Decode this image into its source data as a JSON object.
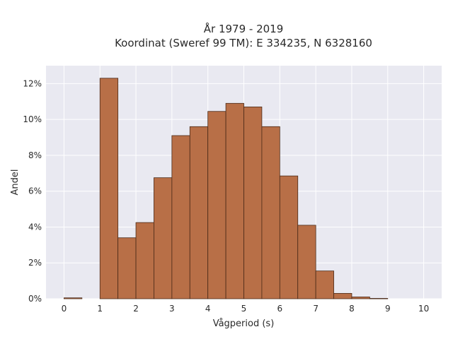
{
  "chart_data": {
    "type": "bar",
    "title_lines": [
      "År 1979 - 2019",
      "Koordinat (Sweref 99 TM): E 334235, N 6328160"
    ],
    "xlabel": "Vågperiod (s)",
    "ylabel": "Andel",
    "xlim": [
      -0.5,
      10.5
    ],
    "ylim": [
      0,
      13
    ],
    "x_ticks": [
      0,
      1,
      2,
      3,
      4,
      5,
      6,
      7,
      8,
      9,
      10
    ],
    "y_ticks": [
      0,
      2,
      4,
      6,
      8,
      10,
      12
    ],
    "y_tick_suffix": "%",
    "bin_width": 0.5,
    "bins": [
      {
        "start": 0.0,
        "value": 0.05
      },
      {
        "start": 0.5,
        "value": 0.0
      },
      {
        "start": 1.0,
        "value": 12.3
      },
      {
        "start": 1.5,
        "value": 3.4
      },
      {
        "start": 2.0,
        "value": 4.25
      },
      {
        "start": 2.5,
        "value": 6.75
      },
      {
        "start": 3.0,
        "value": 9.1
      },
      {
        "start": 3.5,
        "value": 9.6
      },
      {
        "start": 4.0,
        "value": 10.45
      },
      {
        "start": 4.5,
        "value": 10.9
      },
      {
        "start": 5.0,
        "value": 10.7
      },
      {
        "start": 5.5,
        "value": 9.6
      },
      {
        "start": 6.0,
        "value": 6.85
      },
      {
        "start": 6.5,
        "value": 4.1
      },
      {
        "start": 7.0,
        "value": 1.55
      },
      {
        "start": 7.5,
        "value": 0.3
      },
      {
        "start": 8.0,
        "value": 0.1
      },
      {
        "start": 8.5,
        "value": 0.02
      }
    ],
    "grid": true,
    "colors": {
      "bar_fill": "#b86f47",
      "bar_edge": "#4a2a18",
      "plot_background": "#e9e9f1",
      "grid": "#ffffff"
    }
  }
}
